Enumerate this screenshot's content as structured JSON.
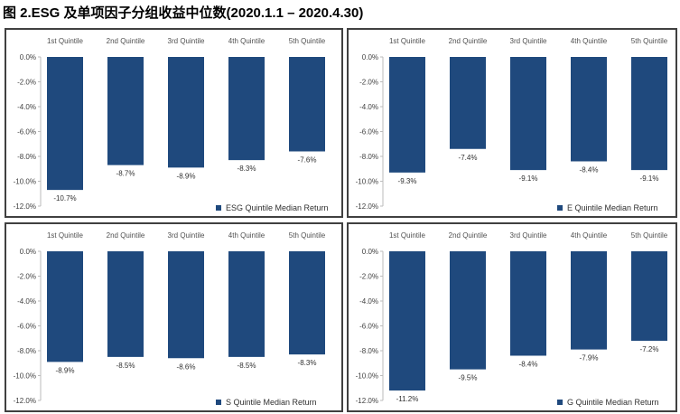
{
  "title": "图 2.ESG 及单项因子分组收益中位数(2020.1.1 – 2020.4.30)",
  "bar_color": "#1F497D",
  "chart_data": [
    {
      "type": "bar",
      "categories": [
        "1st Quintile",
        "2nd Quintile",
        "3rd Quintile",
        "4th Quintile",
        "5th Quintile"
      ],
      "series": [
        {
          "name": "ESG Quintile Median Return",
          "values": [
            -10.7,
            -8.7,
            -8.9,
            -8.3,
            -7.6
          ]
        }
      ],
      "data_labels": [
        "-10.7%",
        "-8.7%",
        "-8.9%",
        "-8.3%",
        "-7.6%"
      ],
      "yticks": [
        "0.0%",
        "-2.0%",
        "-4.0%",
        "-6.0%",
        "-8.0%",
        "-10.0%",
        "-12.0%"
      ],
      "ylim": [
        -12,
        0
      ],
      "legend": "bottom-right",
      "grid": false
    },
    {
      "type": "bar",
      "categories": [
        "1st Quintile",
        "2nd Quintile",
        "3rd Quintile",
        "4th Quintile",
        "5th Quintile"
      ],
      "series": [
        {
          "name": "E Quintile Median Return",
          "values": [
            -9.3,
            -7.4,
            -9.1,
            -8.4,
            -9.1
          ]
        }
      ],
      "data_labels": [
        "-9.3%",
        "-7.4%",
        "-9.1%",
        "-8.4%",
        "-9.1%"
      ],
      "yticks": [
        "0.0%",
        "-2.0%",
        "-4.0%",
        "-6.0%",
        "-8.0%",
        "-10.0%",
        "-12.0%"
      ],
      "ylim": [
        -12,
        0
      ],
      "legend": "bottom-right",
      "grid": false
    },
    {
      "type": "bar",
      "categories": [
        "1st Quintile",
        "2nd Quintile",
        "3rd Quintile",
        "4th Quintile",
        "5th Quintile"
      ],
      "series": [
        {
          "name": "S Quintile Median Return",
          "values": [
            -8.9,
            -8.5,
            -8.6,
            -8.5,
            -8.3
          ]
        }
      ],
      "data_labels": [
        "-8.9%",
        "-8.5%",
        "-8.6%",
        "-8.5%",
        "-8.3%"
      ],
      "yticks": [
        "0.0%",
        "-2.0%",
        "-4.0%",
        "-6.0%",
        "-8.0%",
        "-10.0%",
        "-12.0%"
      ],
      "ylim": [
        -12,
        0
      ],
      "legend": "bottom-right",
      "grid": false
    },
    {
      "type": "bar",
      "categories": [
        "1st Quintile",
        "2nd Quintile",
        "3rd Quintile",
        "4th Quintile",
        "5th Quintile"
      ],
      "series": [
        {
          "name": "G Quintile Median Return",
          "values": [
            -11.2,
            -9.5,
            -8.4,
            -7.9,
            -7.2
          ]
        }
      ],
      "data_labels": [
        "-11.2%",
        "-9.5%",
        "-8.4%",
        "-7.9%",
        "-7.2%"
      ],
      "yticks": [
        "0.0%",
        "-2.0%",
        "-4.0%",
        "-6.0%",
        "-8.0%",
        "-10.0%",
        "-12.0%"
      ],
      "ylim": [
        -12,
        0
      ],
      "legend": "bottom-right",
      "grid": false
    }
  ]
}
